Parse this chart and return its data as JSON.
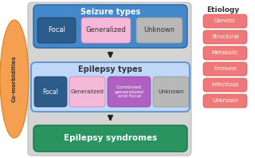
{
  "fig_bg": "#ffffff",
  "gray_panel_color": "#d4d4d4",
  "title_seizure": "Seizure types",
  "seizure_box_color": "#4488cc",
  "seizure_focal_color": "#2b5c8a",
  "seizure_generalized_color": "#f5b8d8",
  "seizure_unknown_color": "#b8b8b8",
  "title_epilepsy": "Epilepsy types",
  "epilepsy_box_color": "#c0d8f8",
  "epilepsy_border_color": "#6699cc",
  "epilepsy_focal_color": "#2b5c8a",
  "epilepsy_generalized_color": "#f5b8d8",
  "epilepsy_combined_color": "#b060c0",
  "epilepsy_unknown_color": "#b8b8b8",
  "syndromes_color": "#2a9460",
  "syndromes_text": "Epilepsy syndromes",
  "comorbidities_color": "#f5a050",
  "comorbidities_text": "Co-morbidities",
  "etiology_labels": [
    "Genetic",
    "Structural",
    "Metabolic",
    "Immune",
    "Infectious",
    "Unknown"
  ],
  "etiology_box_color": "#f07878",
  "etiology_title": "Etiology",
  "arrow_color": "#222222",
  "text_white": "#ffffff",
  "text_dark": "#333333",
  "text_medium": "#555555"
}
